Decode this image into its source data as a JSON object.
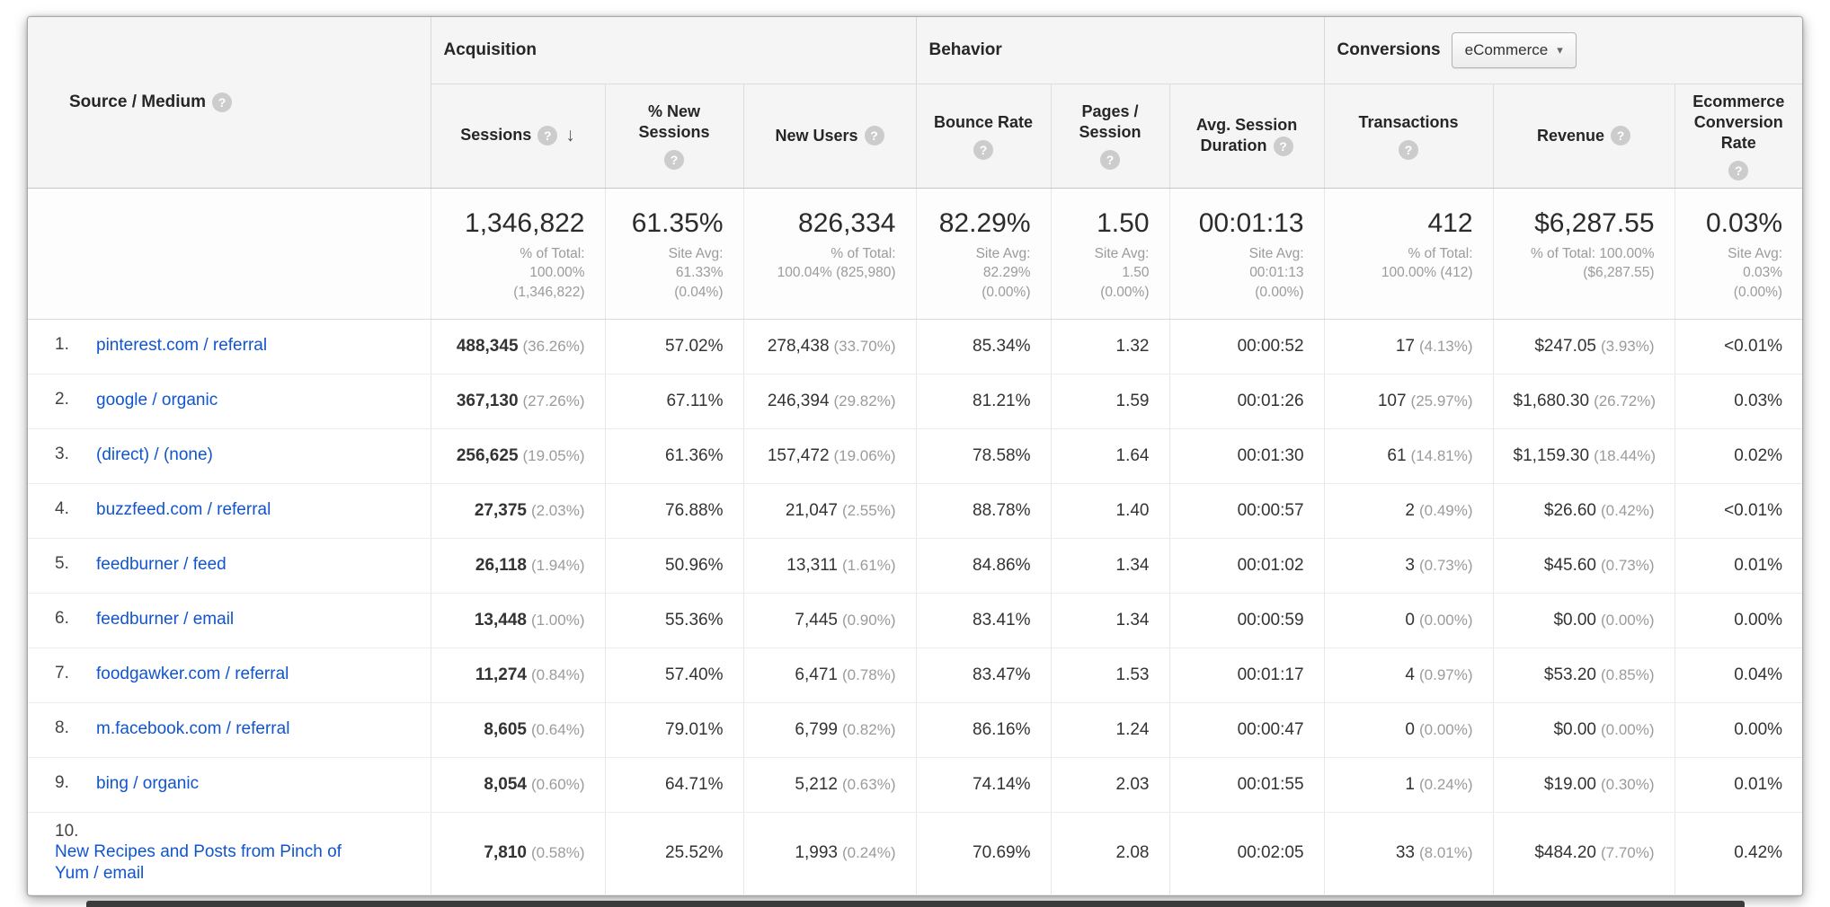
{
  "icons": {
    "help": "?",
    "sort_desc": "↓",
    "caret": "▾"
  },
  "header": {
    "groups": {
      "acquisition": "Acquisition",
      "behavior": "Behavior",
      "conversions": "Conversions"
    },
    "conversions_selected": "eCommerce",
    "columns": {
      "source_medium": "Source / Medium",
      "sessions": "Sessions",
      "pct_new_sessions": "% New Sessions",
      "new_users": "New Users",
      "bounce_rate": "Bounce Rate",
      "pages_session": "Pages / Session",
      "avg_duration": "Avg. Session Duration",
      "transactions": "Transactions",
      "revenue": "Revenue",
      "ecomm_rate": "Ecommerce Conversion Rate"
    }
  },
  "summary": {
    "sessions": {
      "value": "1,346,822",
      "note": "% of Total:\n100.00%\n(1,346,822)"
    },
    "pct_new_sessions": {
      "value": "61.35%",
      "note": "Site Avg:\n61.33%\n(0.04%)"
    },
    "new_users": {
      "value": "826,334",
      "note": "% of Total:\n100.04% (825,980)"
    },
    "bounce_rate": {
      "value": "82.29%",
      "note": "Site Avg:\n82.29%\n(0.00%)"
    },
    "pages_session": {
      "value": "1.50",
      "note": "Site Avg:\n1.50\n(0.00%)"
    },
    "avg_duration": {
      "value": "00:01:13",
      "note": "Site Avg:\n00:01:13\n(0.00%)"
    },
    "transactions": {
      "value": "412",
      "note": "% of Total:\n100.00% (412)"
    },
    "revenue": {
      "value": "$6,287.55",
      "note": "% of Total: 100.00%\n($6,287.55)"
    },
    "ecomm_rate": {
      "value": "0.03%",
      "note": "Site Avg:\n0.03%\n(0.00%)"
    }
  },
  "rows": [
    {
      "rank": "1.",
      "source": "pinterest.com / referral",
      "sessions": "488,345",
      "sessions_pct": "(36.26%)",
      "new_sessions": "57.02%",
      "new_users": "278,438",
      "new_users_pct": "(33.70%)",
      "bounce": "85.34%",
      "pages": "1.32",
      "duration": "00:00:52",
      "transactions": "17",
      "transactions_pct": "(4.13%)",
      "revenue": "$247.05",
      "revenue_pct": "(3.93%)",
      "ecomm": "<0.01%"
    },
    {
      "rank": "2.",
      "source": "google / organic",
      "sessions": "367,130",
      "sessions_pct": "(27.26%)",
      "new_sessions": "67.11%",
      "new_users": "246,394",
      "new_users_pct": "(29.82%)",
      "bounce": "81.21%",
      "pages": "1.59",
      "duration": "00:01:26",
      "transactions": "107",
      "transactions_pct": "(25.97%)",
      "revenue": "$1,680.30",
      "revenue_pct": "(26.72%)",
      "ecomm": "0.03%"
    },
    {
      "rank": "3.",
      "source": "(direct) / (none)",
      "sessions": "256,625",
      "sessions_pct": "(19.05%)",
      "new_sessions": "61.36%",
      "new_users": "157,472",
      "new_users_pct": "(19.06%)",
      "bounce": "78.58%",
      "pages": "1.64",
      "duration": "00:01:30",
      "transactions": "61",
      "transactions_pct": "(14.81%)",
      "revenue": "$1,159.30",
      "revenue_pct": "(18.44%)",
      "ecomm": "0.02%"
    },
    {
      "rank": "4.",
      "source": "buzzfeed.com / referral",
      "sessions": "27,375",
      "sessions_pct": "(2.03%)",
      "new_sessions": "76.88%",
      "new_users": "21,047",
      "new_users_pct": "(2.55%)",
      "bounce": "88.78%",
      "pages": "1.40",
      "duration": "00:00:57",
      "transactions": "2",
      "transactions_pct": "(0.49%)",
      "revenue": "$26.60",
      "revenue_pct": "(0.42%)",
      "ecomm": "<0.01%"
    },
    {
      "rank": "5.",
      "source": "feedburner / feed",
      "sessions": "26,118",
      "sessions_pct": "(1.94%)",
      "new_sessions": "50.96%",
      "new_users": "13,311",
      "new_users_pct": "(1.61%)",
      "bounce": "84.86%",
      "pages": "1.34",
      "duration": "00:01:02",
      "transactions": "3",
      "transactions_pct": "(0.73%)",
      "revenue": "$45.60",
      "revenue_pct": "(0.73%)",
      "ecomm": "0.01%"
    },
    {
      "rank": "6.",
      "source": "feedburner / email",
      "sessions": "13,448",
      "sessions_pct": "(1.00%)",
      "new_sessions": "55.36%",
      "new_users": "7,445",
      "new_users_pct": "(0.90%)",
      "bounce": "83.41%",
      "pages": "1.34",
      "duration": "00:00:59",
      "transactions": "0",
      "transactions_pct": "(0.00%)",
      "revenue": "$0.00",
      "revenue_pct": "(0.00%)",
      "ecomm": "0.00%"
    },
    {
      "rank": "7.",
      "source": "foodgawker.com / referral",
      "sessions": "11,274",
      "sessions_pct": "(0.84%)",
      "new_sessions": "57.40%",
      "new_users": "6,471",
      "new_users_pct": "(0.78%)",
      "bounce": "83.47%",
      "pages": "1.53",
      "duration": "00:01:17",
      "transactions": "4",
      "transactions_pct": "(0.97%)",
      "revenue": "$53.20",
      "revenue_pct": "(0.85%)",
      "ecomm": "0.04%"
    },
    {
      "rank": "8.",
      "source": "m.facebook.com / referral",
      "sessions": "8,605",
      "sessions_pct": "(0.64%)",
      "new_sessions": "79.01%",
      "new_users": "6,799",
      "new_users_pct": "(0.82%)",
      "bounce": "86.16%",
      "pages": "1.24",
      "duration": "00:00:47",
      "transactions": "0",
      "transactions_pct": "(0.00%)",
      "revenue": "$0.00",
      "revenue_pct": "(0.00%)",
      "ecomm": "0.00%"
    },
    {
      "rank": "9.",
      "source": "bing / organic",
      "sessions": "8,054",
      "sessions_pct": "(0.60%)",
      "new_sessions": "64.71%",
      "new_users": "5,212",
      "new_users_pct": "(0.63%)",
      "bounce": "74.14%",
      "pages": "2.03",
      "duration": "00:01:55",
      "transactions": "1",
      "transactions_pct": "(0.24%)",
      "revenue": "$19.00",
      "revenue_pct": "(0.30%)",
      "ecomm": "0.01%"
    },
    {
      "rank": "10.",
      "source": "New Recipes and Posts from Pinch of Yum / email",
      "sessions": "7,810",
      "sessions_pct": "(0.58%)",
      "new_sessions": "25.52%",
      "new_users": "1,993",
      "new_users_pct": "(0.24%)",
      "bounce": "70.69%",
      "pages": "2.08",
      "duration": "00:02:05",
      "transactions": "33",
      "transactions_pct": "(8.01%)",
      "revenue": "$484.20",
      "revenue_pct": "(7.70%)",
      "ecomm": "0.42%"
    }
  ]
}
